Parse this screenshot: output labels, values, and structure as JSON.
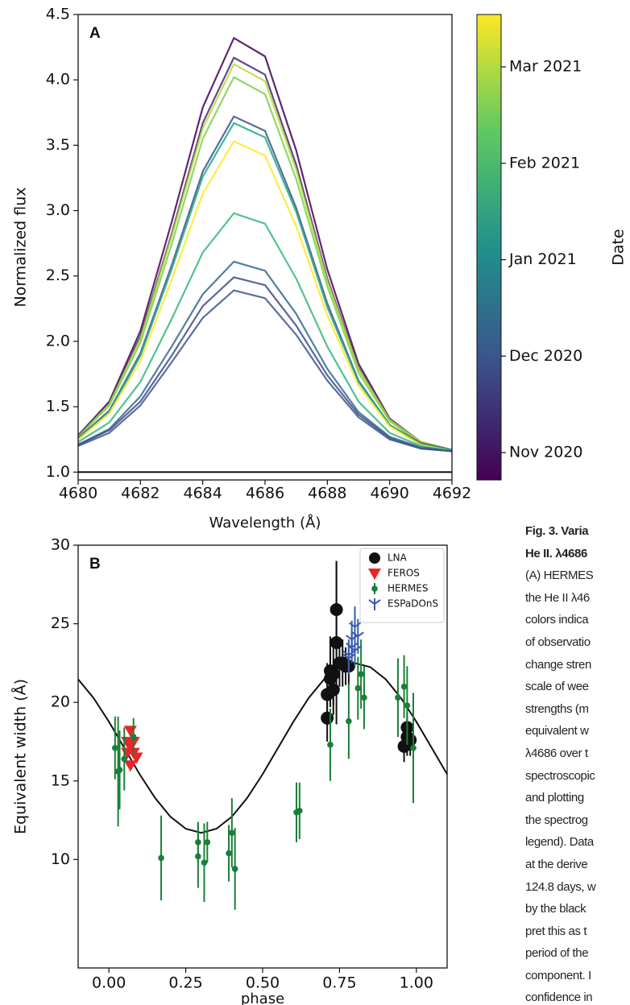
{
  "chart_data": [
    {
      "type": "line",
      "panel_label": "A",
      "xlabel": "Wavelength (Å)",
      "ylabel": "Normalized flux",
      "x": [
        4680,
        4681,
        4682,
        4683,
        4684,
        4685,
        4686,
        4687,
        4688,
        4689,
        4690,
        4691,
        4692
      ],
      "xlim": [
        4680,
        4692
      ],
      "xticks": [
        4680,
        4682,
        4684,
        4686,
        4688,
        4690,
        4692
      ],
      "ylim": [
        0.94,
        4.5
      ],
      "yticks": [
        {
          "value": 1,
          "label": "1.0"
        },
        {
          "value": 1.5,
          "label": "1.5"
        },
        {
          "value": 2,
          "label": "2.0"
        },
        {
          "value": 2.5,
          "label": "2.5"
        },
        {
          "value": 3,
          "label": "3.0"
        },
        {
          "value": 3.5,
          "label": "3.5"
        },
        {
          "value": 4,
          "label": "4.0"
        },
        {
          "value": 4.5,
          "label": "4.5"
        }
      ],
      "hline": 1,
      "series": [
        {
          "color": "#440154",
          "values": [
            1.28,
            1.54,
            2.08,
            2.91,
            3.79,
            4.32,
            4.18,
            3.46,
            2.55,
            1.83,
            1.41,
            1.23,
            1.17
          ]
        },
        {
          "color": "#482878",
          "values": [
            1.28,
            1.53,
            2.04,
            2.82,
            3.67,
            4.17,
            4.04,
            3.35,
            2.48,
            1.8,
            1.4,
            1.23,
            1.17
          ]
        },
        {
          "color": "#b5de2b",
          "values": [
            1.27,
            1.52,
            2.02,
            2.8,
            3.63,
            4.12,
            3.99,
            3.31,
            2.46,
            1.79,
            1.4,
            1.23,
            1.17
          ]
        },
        {
          "color": "#7ad151",
          "values": [
            1.27,
            1.51,
            1.99,
            2.74,
            3.55,
            4.02,
            3.89,
            3.24,
            2.42,
            1.76,
            1.39,
            1.22,
            1.17
          ]
        },
        {
          "color": "#3b528b",
          "values": [
            1.26,
            1.47,
            1.91,
            2.58,
            3.3,
            3.72,
            3.61,
            3.02,
            2.29,
            1.7,
            1.36,
            1.22,
            1.17
          ]
        },
        {
          "color": "#22a884",
          "values": [
            1.25,
            1.46,
            1.89,
            2.55,
            3.26,
            3.67,
            3.56,
            2.99,
            2.26,
            1.69,
            1.36,
            1.21,
            1.17
          ]
        },
        {
          "color": "#fde725",
          "values": [
            1.25,
            1.45,
            1.85,
            2.47,
            3.13,
            3.53,
            3.42,
            2.88,
            2.2,
            1.66,
            1.35,
            1.21,
            1.16
          ]
        },
        {
          "color": "#35b779",
          "values": [
            1.23,
            1.38,
            1.69,
            2.17,
            2.68,
            2.98,
            2.9,
            2.48,
            1.96,
            1.54,
            1.3,
            1.2,
            1.16
          ]
        },
        {
          "color": "#31688e",
          "values": [
            1.21,
            1.33,
            1.58,
            1.96,
            2.36,
            2.61,
            2.54,
            2.21,
            1.79,
            1.46,
            1.27,
            1.19,
            1.16
          ]
        },
        {
          "color": "#3e4a89",
          "values": [
            1.21,
            1.32,
            1.54,
            1.89,
            2.27,
            2.49,
            2.43,
            2.12,
            1.74,
            1.44,
            1.26,
            1.18,
            1.16
          ]
        },
        {
          "color": "#39568c",
          "values": [
            1.2,
            1.3,
            1.51,
            1.84,
            2.18,
            2.39,
            2.33,
            2.05,
            1.7,
            1.42,
            1.25,
            1.18,
            1.16
          ]
        }
      ],
      "colorbar": {
        "label": "Date",
        "ticks": [
          "Nov 2020",
          "Dec 2020",
          "Jan 2021",
          "Feb 2021",
          "Mar 2021"
        ],
        "colors": [
          "#440154",
          "#3b528b",
          "#21918c",
          "#5ec962",
          "#fde725"
        ]
      }
    },
    {
      "type": "scatter",
      "panel_label": "B",
      "xlabel": "phase",
      "ylabel": "Equivalent width (Å)",
      "xlim": [
        -0.1,
        1.1
      ],
      "xticks": [
        {
          "value": 0,
          "label": "0.00"
        },
        {
          "value": 0.25,
          "label": "0.25"
        },
        {
          "value": 0.5,
          "label": "0.50"
        },
        {
          "value": 0.75,
          "label": "0.75"
        },
        {
          "value": 1,
          "label": "1.00"
        }
      ],
      "ylim": [
        3.1,
        30
      ],
      "yticks": [
        10,
        15,
        20,
        25,
        30
      ],
      "legend": "upper right",
      "series": [
        {
          "name": "LNA",
          "color": "#111111",
          "marker": "o",
          "x": [
            0.71,
            0.71,
            0.72,
            0.72,
            0.73,
            0.73,
            0.74,
            0.74,
            0.75,
            0.76,
            0.77,
            0.78,
            0.96,
            0.97,
            0.97,
            0.98
          ],
          "values": [
            19.0,
            20.5,
            21.5,
            22.0,
            20.8,
            21.8,
            23.8,
            25.9,
            22.5,
            22.5,
            22.3,
            22.3,
            17.2,
            17.8,
            18.4,
            17.6
          ],
          "errors": [
            1.5,
            2.0,
            1.8,
            2.2,
            1.6,
            2.0,
            5.2,
            3.0,
            1.5,
            1.5,
            1.2,
            1.2,
            1.0,
            1.2,
            1.0,
            1.0
          ]
        },
        {
          "name": "FEROS",
          "color": "#e8262a",
          "marker": "v",
          "x": [
            0.06,
            0.06,
            0.07,
            0.07,
            0.08,
            0.08,
            0.09,
            0.07
          ],
          "values": [
            17.5,
            16.8,
            18.2,
            17.2,
            16.8,
            17.5,
            16.5,
            16.0
          ]
        },
        {
          "name": "HERMES",
          "color": "#1a7f37",
          "marker": "o",
          "x": [
            0.02,
            0.03,
            0.035,
            0.05,
            0.08,
            0.17,
            0.29,
            0.29,
            0.31,
            0.32,
            0.39,
            0.4,
            0.41,
            0.61,
            0.62,
            0.72,
            0.78,
            0.81,
            0.82,
            0.83,
            0.94,
            0.96,
            0.97,
            0.99
          ],
          "values": [
            17.1,
            15.6,
            15.7,
            16.4,
            17.8,
            10.1,
            11.1,
            10.2,
            9.8,
            11.1,
            10.4,
            11.7,
            9.4,
            13.0,
            13.1,
            17.3,
            18.8,
            20.9,
            21.8,
            20.3,
            20.3,
            21.0,
            19.8,
            17.1
          ],
          "errors": [
            2.0,
            3.5,
            2.5,
            2.0,
            1.2,
            2.7,
            1.3,
            2.0,
            2.5,
            1.3,
            1.8,
            2.2,
            2.6,
            1.9,
            1.8,
            2.3,
            2.4,
            2.0,
            2.2,
            2.0,
            2.5,
            2.0,
            2.5,
            3.5
          ]
        },
        {
          "name": "ESPaDOnS",
          "color": "#3a5bab",
          "marker": "1",
          "x": [
            0.78,
            0.79,
            0.79,
            0.8,
            0.8,
            0.78,
            0.81
          ],
          "values": [
            23.0,
            24.0,
            23.5,
            24.8,
            23.3,
            22.8,
            24.2
          ],
          "errors": [
            1.0,
            1.2,
            1.0,
            1.3,
            1.0,
            1.0,
            1.1
          ]
        }
      ],
      "fit": {
        "color": "#111111",
        "x": [
          -0.1,
          -0.05,
          0,
          0.05,
          0.1,
          0.15,
          0.2,
          0.25,
          0.3,
          0.35,
          0.4,
          0.45,
          0.5,
          0.55,
          0.6,
          0.65,
          0.7,
          0.75,
          0.8,
          0.85,
          0.9,
          0.95,
          1,
          1.05,
          1.1
        ],
        "values": [
          21.47,
          20.28,
          18.77,
          17.1,
          15.43,
          13.92,
          12.73,
          11.96,
          11.7,
          11.96,
          12.73,
          13.92,
          15.43,
          17.1,
          18.77,
          20.28,
          21.47,
          22.24,
          22.5,
          22.24,
          21.47,
          20.28,
          18.77,
          17.1,
          15.43
        ]
      }
    }
  ],
  "caption": {
    "lines": [
      "Fig. 3. Varia",
      "He II. λ4686",
      "(A) HERMES",
      "the He II λ46",
      "colors indica",
      "of observatio",
      "change stren",
      "scale of wee",
      "strengths (m",
      "equivalent w",
      "λ4686 over t",
      "spectroscopic",
      "and plotting",
      "the spectrog",
      "legend). Data",
      "at the derive",
      "124.8 days, w",
      "by the black",
      "pret this as t",
      "period of the",
      "component. I",
      "confidence in"
    ]
  }
}
